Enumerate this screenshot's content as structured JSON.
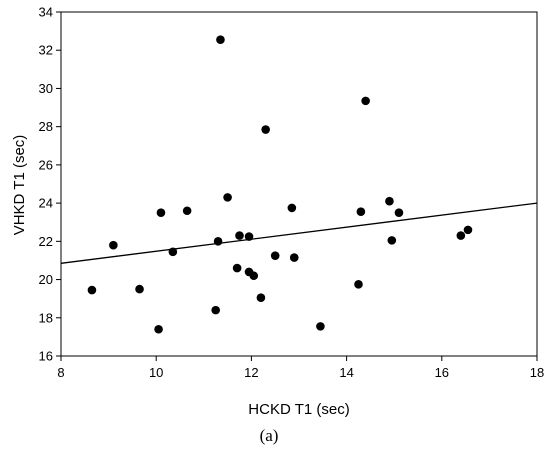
{
  "chart_data": {
    "type": "scatter",
    "title": "",
    "xlabel": "HCKD T1 (sec)",
    "ylabel": "VHKD T1 (sec)",
    "caption": "(a)",
    "xlim": [
      8,
      18
    ],
    "ylim": [
      16,
      34
    ],
    "xticks": [
      8,
      10,
      12,
      14,
      16,
      18
    ],
    "yticks": [
      16,
      18,
      20,
      22,
      24,
      26,
      28,
      30,
      32,
      34
    ],
    "grid": false,
    "legend": "none",
    "marker_color": "#000000",
    "points": [
      {
        "x": 8.65,
        "y": 19.45
      },
      {
        "x": 9.1,
        "y": 21.8
      },
      {
        "x": 9.65,
        "y": 19.5
      },
      {
        "x": 10.05,
        "y": 17.4
      },
      {
        "x": 10.1,
        "y": 23.5
      },
      {
        "x": 10.35,
        "y": 21.45
      },
      {
        "x": 10.65,
        "y": 23.6
      },
      {
        "x": 11.25,
        "y": 18.4
      },
      {
        "x": 11.3,
        "y": 22.0
      },
      {
        "x": 11.35,
        "y": 32.55
      },
      {
        "x": 11.5,
        "y": 24.3
      },
      {
        "x": 11.7,
        "y": 20.6
      },
      {
        "x": 11.75,
        "y": 22.3
      },
      {
        "x": 11.95,
        "y": 22.25
      },
      {
        "x": 11.95,
        "y": 20.4
      },
      {
        "x": 12.05,
        "y": 20.2
      },
      {
        "x": 12.2,
        "y": 19.05
      },
      {
        "x": 12.3,
        "y": 27.85
      },
      {
        "x": 12.5,
        "y": 21.25
      },
      {
        "x": 12.85,
        "y": 23.75
      },
      {
        "x": 12.9,
        "y": 21.15
      },
      {
        "x": 13.45,
        "y": 17.55
      },
      {
        "x": 14.25,
        "y": 19.75
      },
      {
        "x": 14.3,
        "y": 23.55
      },
      {
        "x": 14.4,
        "y": 29.35
      },
      {
        "x": 14.9,
        "y": 24.1
      },
      {
        "x": 14.95,
        "y": 22.05
      },
      {
        "x": 15.1,
        "y": 23.5
      },
      {
        "x": 16.4,
        "y": 22.3
      },
      {
        "x": 16.55,
        "y": 22.6
      }
    ],
    "trendline": {
      "x": [
        8,
        18
      ],
      "y": [
        20.85,
        24.0
      ]
    }
  }
}
